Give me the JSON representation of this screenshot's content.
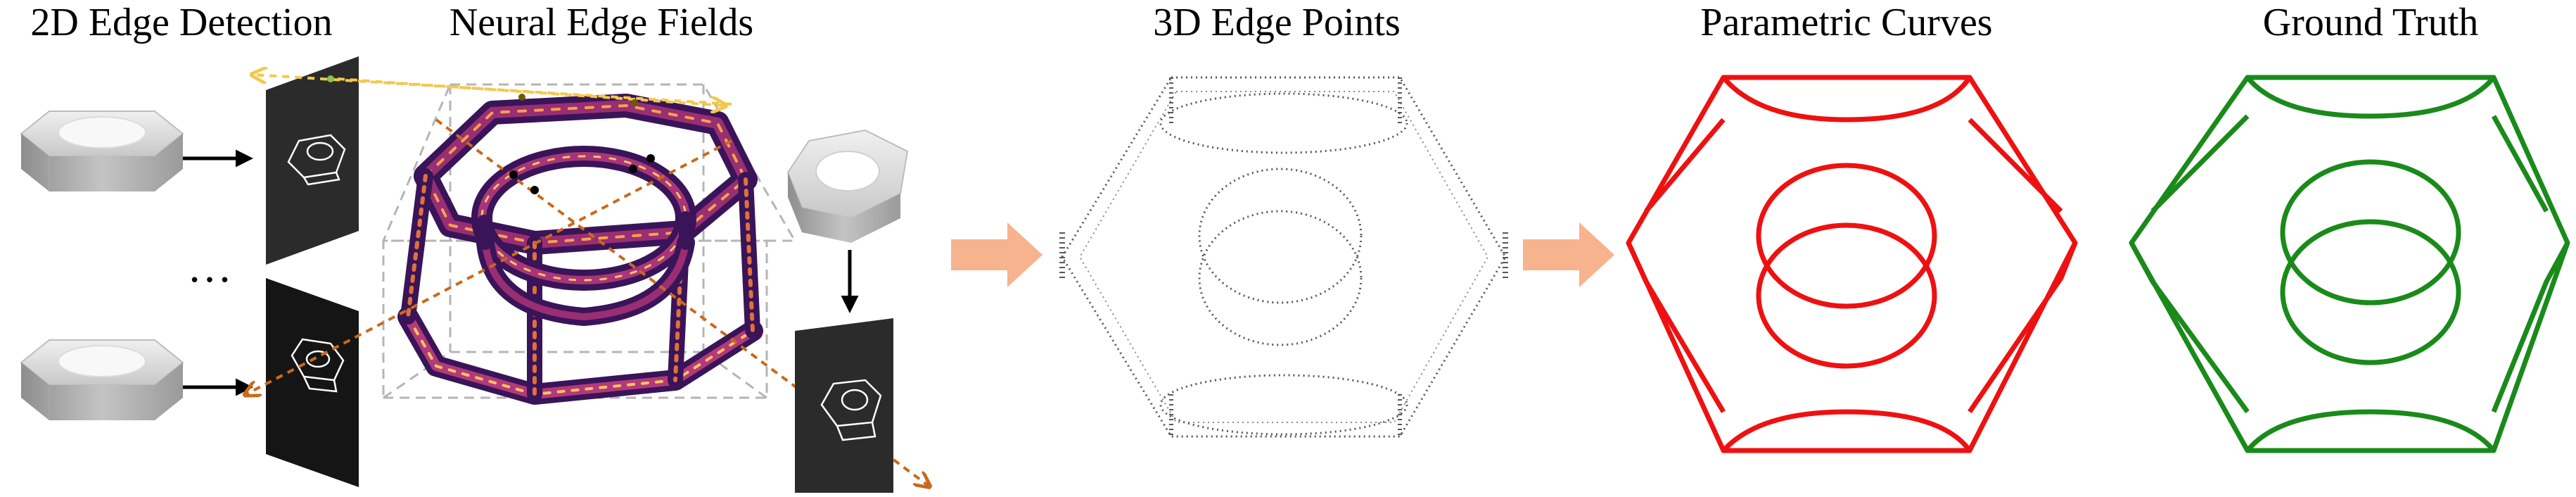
{
  "titles": {
    "edge_detection": "2D Edge Detection",
    "neural_fields": "Neural Edge Fields",
    "edge_points": "3D Edge Points",
    "parametric": "Parametric Curves",
    "ground_truth": "Ground Truth"
  },
  "ellipsis": "…",
  "colors": {
    "parametric_curve": "#ee1111",
    "ground_truth_curve": "#1a8a1a",
    "flow_arrow": "#f6b38d",
    "ray_orange": "#c86a1c",
    "ray_yellow": "#f2c94c",
    "edge_points_gray": "#555555",
    "neural_dark": "#3a1458",
    "neural_mid": "#9a2e73",
    "neural_bright": "#f3a34a",
    "image_plane": "#222222"
  },
  "icons": [
    "hex-nut-icon",
    "edge-image-icon",
    "pipeline-arrow-icon"
  ]
}
